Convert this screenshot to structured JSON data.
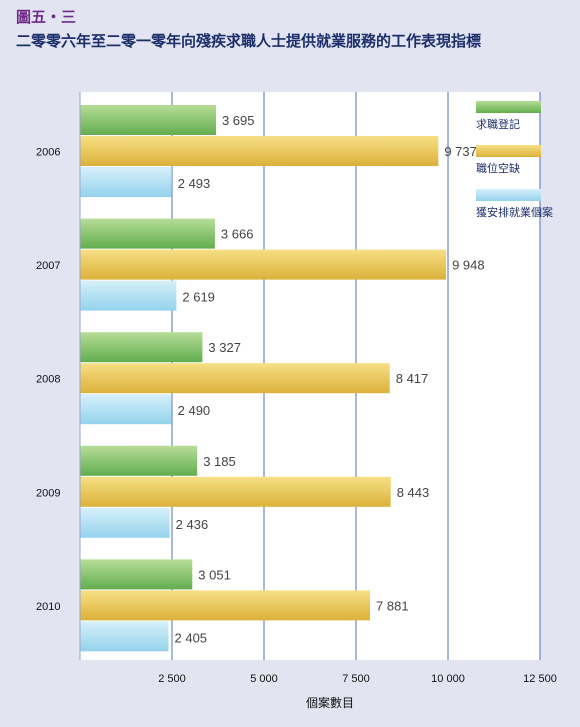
{
  "figure": {
    "label": "圖五・三",
    "title": "二零零六年至二零一零年向殘疾求職人士提供就業服務的工作表現指標"
  },
  "colors": {
    "background": "#e3e4f2",
    "plot_background": "#ffffff",
    "grid": "#4f72b8",
    "label_text": "#444444",
    "title_text": "#1c2f6b",
    "figure_label": "#6e2a86"
  },
  "chart_data": {
    "type": "bar",
    "orientation": "horizontal",
    "categories": [
      "2006",
      "2007",
      "2008",
      "2009",
      "2010"
    ],
    "series": [
      {
        "name": "求職登記",
        "values": [
          3695,
          3666,
          3327,
          3185,
          3051
        ],
        "color_light": "#b6dd97",
        "color_dark": "#62ad4e"
      },
      {
        "name": "職位空缺",
        "values": [
          9737,
          9948,
          8417,
          8443,
          7881
        ],
        "color_light": "#f6df85",
        "color_dark": "#dcb13a"
      },
      {
        "name": "獲安排就業個案",
        "values": [
          2493,
          2619,
          2490,
          2436,
          2405
        ],
        "color_light": "#d6f0fa",
        "color_dark": "#94d2ec"
      }
    ],
    "value_labels": [
      [
        "3 695",
        "9 737",
        "2 493"
      ],
      [
        "3 666",
        "9 948",
        "2 619"
      ],
      [
        "3 327",
        "8 417",
        "2 490"
      ],
      [
        "3 185",
        "8 443",
        "2 436"
      ],
      [
        "3 051",
        "7 881",
        "2 405"
      ]
    ],
    "xticks": [
      2500,
      5000,
      7500,
      10000,
      12500
    ],
    "xtick_labels": [
      "2 500",
      "5 000",
      "7 500",
      "10 000",
      "12 500"
    ],
    "xlim": [
      0,
      12500
    ],
    "xlabel": "個案數目",
    "grid": true,
    "legend_position": "top-right"
  }
}
